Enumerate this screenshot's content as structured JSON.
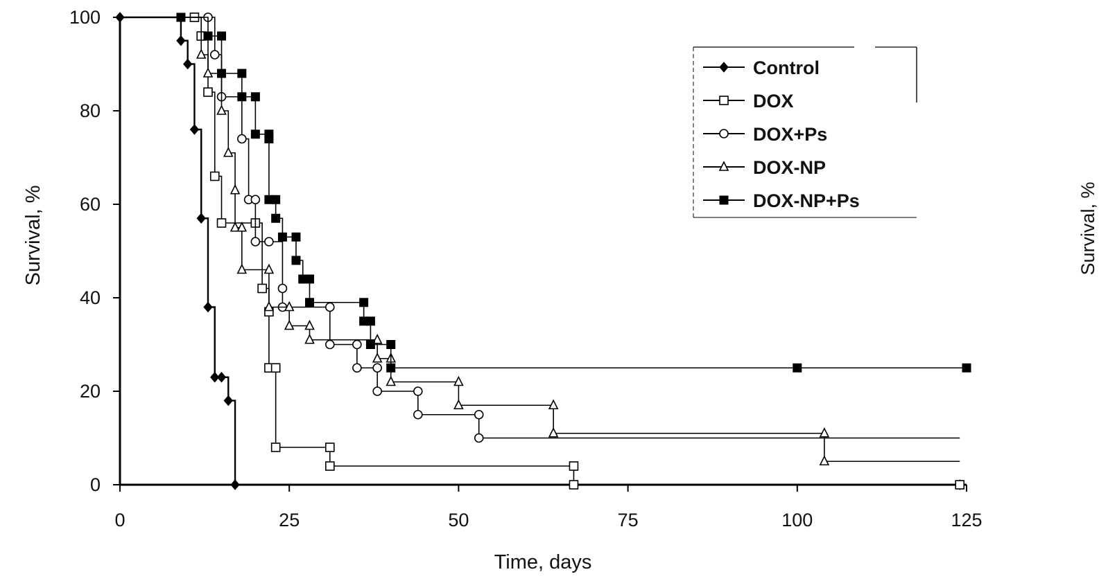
{
  "chart_data": {
    "type": "line",
    "subtype": "kaplan-meier step curves",
    "xlabel": "Time, days",
    "ylabel": "Survival, %",
    "xlim": [
      0,
      125
    ],
    "ylim": [
      0,
      100
    ],
    "xticks": [
      "0",
      "25",
      "50",
      "75",
      "100",
      "125"
    ],
    "yticks": [
      "0",
      "20",
      "40",
      "60",
      "80",
      "100"
    ],
    "grid": false,
    "legend_position": "top-right",
    "series": [
      {
        "name": "Control",
        "marker": "filled-diamond",
        "color": "#000000",
        "points": [
          [
            0,
            100
          ],
          [
            9,
            95
          ],
          [
            10,
            90
          ],
          [
            11,
            76
          ],
          [
            12,
            57
          ],
          [
            13,
            38
          ],
          [
            14,
            23
          ],
          [
            15,
            23
          ],
          [
            16,
            18
          ],
          [
            17,
            0
          ],
          [
            124,
            0
          ]
        ]
      },
      {
        "name": "DOX",
        "marker": "open-square",
        "color": "#000000",
        "points": [
          [
            0,
            100
          ],
          [
            11,
            100
          ],
          [
            12,
            96
          ],
          [
            13,
            84
          ],
          [
            14,
            66
          ],
          [
            15,
            56
          ],
          [
            20,
            56
          ],
          [
            21,
            42
          ],
          [
            22,
            37
          ],
          [
            22,
            25
          ],
          [
            23,
            25
          ],
          [
            23,
            8
          ],
          [
            31,
            8
          ],
          [
            31,
            4
          ],
          [
            67,
            4
          ],
          [
            67,
            0
          ],
          [
            124,
            0
          ]
        ]
      },
      {
        "name": "DOX+Ps",
        "marker": "open-circle",
        "color": "#000000",
        "points": [
          [
            0,
            100
          ],
          [
            13,
            100
          ],
          [
            14,
            92
          ],
          [
            15,
            83
          ],
          [
            18,
            74
          ],
          [
            19,
            61
          ],
          [
            20,
            61
          ],
          [
            20,
            52
          ],
          [
            22,
            52
          ],
          [
            24,
            42
          ],
          [
            24,
            38
          ],
          [
            31,
            38
          ],
          [
            31,
            30
          ],
          [
            35,
            30
          ],
          [
            35,
            25
          ],
          [
            38,
            25
          ],
          [
            38,
            20
          ],
          [
            44,
            20
          ],
          [
            44,
            15
          ],
          [
            53,
            15
          ],
          [
            53,
            10
          ],
          [
            124,
            10
          ]
        ]
      },
      {
        "name": "DOX-NP",
        "marker": "open-triangle",
        "color": "#000000",
        "points": [
          [
            0,
            100
          ],
          [
            12,
            92
          ],
          [
            13,
            88
          ],
          [
            15,
            80
          ],
          [
            16,
            71
          ],
          [
            17,
            63
          ],
          [
            17,
            55
          ],
          [
            18,
            55
          ],
          [
            18,
            46
          ],
          [
            22,
            46
          ],
          [
            22,
            38
          ],
          [
            25,
            38
          ],
          [
            25,
            34
          ],
          [
            28,
            34
          ],
          [
            28,
            31
          ],
          [
            38,
            31
          ],
          [
            38,
            27
          ],
          [
            40,
            27
          ],
          [
            40,
            22
          ],
          [
            50,
            22
          ],
          [
            50,
            17
          ],
          [
            64,
            17
          ],
          [
            64,
            11
          ],
          [
            104,
            11
          ],
          [
            104,
            5
          ],
          [
            124,
            5
          ]
        ]
      },
      {
        "name": "DOX-NP+Ps",
        "marker": "filled-square",
        "color": "#000000",
        "points": [
          [
            0,
            100
          ],
          [
            9,
            100
          ],
          [
            13,
            96
          ],
          [
            15,
            96
          ],
          [
            15,
            88
          ],
          [
            18,
            88
          ],
          [
            18,
            83
          ],
          [
            20,
            83
          ],
          [
            20,
            75
          ],
          [
            22,
            75
          ],
          [
            22,
            74
          ],
          [
            22,
            61
          ],
          [
            23,
            61
          ],
          [
            23,
            57
          ],
          [
            24,
            53
          ],
          [
            26,
            53
          ],
          [
            26,
            48
          ],
          [
            27,
            44
          ],
          [
            28,
            44
          ],
          [
            28,
            39
          ],
          [
            36,
            39
          ],
          [
            36,
            35
          ],
          [
            37,
            35
          ],
          [
            37,
            30
          ],
          [
            40,
            30
          ],
          [
            40,
            25
          ],
          [
            100,
            25
          ],
          [
            125,
            25
          ]
        ]
      }
    ],
    "cut_panel": {
      "ylabel": "Survival, %"
    }
  }
}
